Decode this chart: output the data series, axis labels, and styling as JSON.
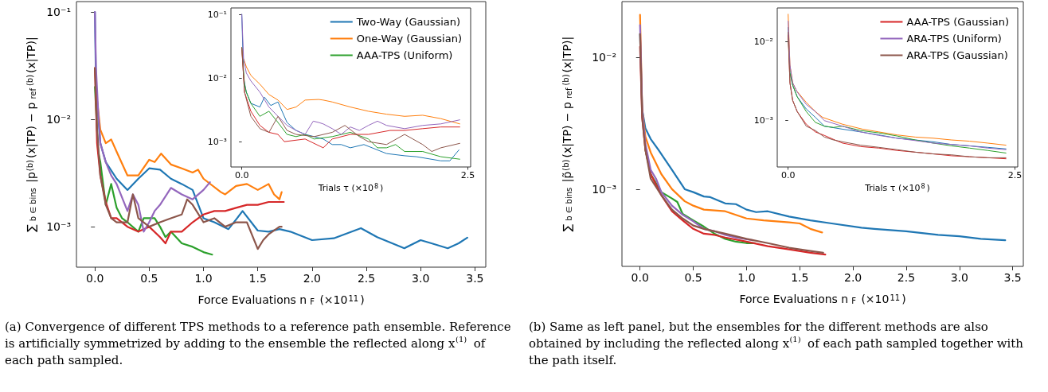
{
  "chart_data": [
    {
      "type": "line",
      "xlabel": "Force Evaluations n$_{F}$ (×10$^{11}$)",
      "ylabel": "∑$_{b ∈ bins}$ |p$^{(b)}$(x|TP) − p$_{ref}$$^{(b)}$(x|TP)|",
      "log": "y",
      "xlim": [
        -0.17,
        3.6
      ],
      "ylim": [
        0.00042,
        0.125
      ],
      "xticks": [
        {
          "value": 0,
          "label": "0.0"
        },
        0.5,
        {
          "value": 1,
          "label": "1.0"
        },
        1.5,
        {
          "value": 2,
          "label": "2.0"
        },
        2.5,
        {
          "value": 3,
          "label": "3.0"
        },
        3.5
      ],
      "yticks": [
        {
          "value": 0.1,
          "label": "10⁻¹"
        },
        {
          "value": 0.01,
          "label": "10⁻²"
        },
        {
          "value": 0.001,
          "label": "10⁻³"
        }
      ],
      "annotations": [
        "(a) Convergence of different TPS methods to a reference path ensemble. Reference is artificially symmetrized by adding to the ensemble the reflected along x$^{(1)}$ of each path sampled."
      ],
      "series": [
        {
          "color": "#1f77b4",
          "x": [
            0,
            0.01,
            0.05,
            0.1,
            0.2,
            0.3,
            0.4,
            0.5,
            0.6,
            0.7,
            0.8,
            0.9,
            1.0,
            1.1,
            1.23,
            1.31,
            1.36,
            1.5,
            1.6,
            1.7,
            1.8,
            2.0,
            2.2,
            2.45,
            2.6,
            2.85,
            3.0,
            3.1,
            3.25,
            3.35,
            3.43
          ],
          "values": [
            0.1,
            0.02,
            0.006,
            0.004,
            0.0028,
            0.0022,
            0.0028,
            0.0035,
            0.0034,
            0.0028,
            0.0025,
            0.0022,
            0.0012,
            0.0011,
            0.00095,
            0.0012,
            0.0014,
            0.00092,
            0.0009,
            0.00095,
            0.0009,
            0.00075,
            0.00078,
            0.00097,
            0.0008,
            0.00063,
            0.00075,
            0.0007,
            0.00063,
            0.0007,
            0.00079
          ]
        },
        {
          "color": "#ff7f0e",
          "x": [
            0,
            0.02,
            0.05,
            0.1,
            0.15,
            0.2,
            0.3,
            0.4,
            0.5,
            0.55,
            0.61,
            0.7,
            0.8,
            0.9,
            0.95,
            1.0,
            1.16,
            1.2,
            1.3,
            1.4,
            1.5,
            1.6,
            1.65,
            1.7,
            1.72
          ],
          "values": [
            0.03,
            0.015,
            0.008,
            0.006,
            0.0065,
            0.005,
            0.003,
            0.003,
            0.0042,
            0.004,
            0.0048,
            0.0038,
            0.0035,
            0.0032,
            0.0034,
            0.0028,
            0.0021,
            0.002,
            0.0024,
            0.0025,
            0.0022,
            0.0025,
            0.002,
            0.0018,
            0.0021
          ]
        },
        {
          "color": "#2ca02c",
          "x": [
            0,
            0.03,
            0.05,
            0.1,
            0.15,
            0.2,
            0.25,
            0.3,
            0.4,
            0.45,
            0.55,
            0.6,
            0.65,
            0.7,
            0.8,
            0.9,
            1.0,
            1.08
          ],
          "values": [
            0.02,
            0.005,
            0.004,
            0.0016,
            0.0025,
            0.0015,
            0.0012,
            0.0011,
            0.0009,
            0.0012,
            0.0012,
            0.001,
            0.0008,
            0.0009,
            0.0007,
            0.00065,
            0.00058,
            0.00055
          ]
        },
        {
          "color": "#d62728",
          "x": [
            0,
            0.02,
            0.05,
            0.1,
            0.15,
            0.2,
            0.3,
            0.4,
            0.5,
            0.6,
            0.65,
            0.7,
            0.8,
            0.9,
            1.0,
            1.1,
            1.2,
            1.3,
            1.4,
            1.5,
            1.6,
            1.74
          ],
          "values": [
            0.03,
            0.006,
            0.003,
            0.0017,
            0.0012,
            0.0012,
            0.001,
            0.0009,
            0.001,
            0.0008,
            0.0007,
            0.0009,
            0.0009,
            0.0011,
            0.0013,
            0.0014,
            0.0014,
            0.0015,
            0.0016,
            0.0016,
            0.0017,
            0.0017
          ]
        },
        {
          "color": "#9467bd",
          "x": [
            0,
            0.01,
            0.03,
            0.05,
            0.1,
            0.15,
            0.2,
            0.3,
            0.35,
            0.4,
            0.45,
            0.5,
            0.55,
            0.6,
            0.7,
            0.8,
            0.9,
            1.0,
            1.06
          ],
          "values": [
            0.1,
            0.03,
            0.012,
            0.006,
            0.004,
            0.003,
            0.0025,
            0.0014,
            0.002,
            0.0016,
            0.0009,
            0.0011,
            0.0014,
            0.0016,
            0.0023,
            0.002,
            0.0018,
            0.0022,
            0.0026
          ]
        },
        {
          "color": "#8c564b",
          "x": [
            0,
            0.02,
            0.05,
            0.1,
            0.15,
            0.2,
            0.3,
            0.35,
            0.4,
            0.5,
            0.6,
            0.7,
            0.8,
            0.85,
            0.9,
            1.0,
            1.1,
            1.2,
            1.3,
            1.4,
            1.5,
            1.55,
            1.6,
            1.7,
            1.72
          ],
          "values": [
            0.03,
            0.008,
            0.003,
            0.0016,
            0.0012,
            0.0011,
            0.0011,
            0.002,
            0.0012,
            0.001,
            0.0011,
            0.0012,
            0.0013,
            0.0018,
            0.0016,
            0.0011,
            0.0012,
            0.001,
            0.0011,
            0.0011,
            0.00062,
            0.00075,
            0.00085,
            0.001,
            0.001
          ]
        }
      ]
    },
    {
      "type": "line",
      "xlabel": "Trials τ (×10$^{8}$)",
      "log": "y",
      "legend": "top right",
      "xlim": [
        -0.12,
        2.53
      ],
      "ylim": [
        0.0004,
        0.126
      ],
      "xticks": [
        {
          "value": 0,
          "label": "0.0"
        },
        2.5
      ],
      "yticks": [
        {
          "value": 0.1,
          "label": "10⁻¹"
        },
        {
          "value": 0.01,
          "label": "10⁻²"
        },
        {
          "value": 0.001,
          "label": "10⁻³"
        }
      ],
      "series": [
        {
          "name": "Two-Way (Gaussian)",
          "color": "#1f77b4",
          "x": [
            0,
            0.02,
            0.05,
            0.1,
            0.2,
            0.25,
            0.32,
            0.4,
            0.5,
            0.6,
            0.7,
            0.8,
            0.9,
            1.0,
            1.1,
            1.2,
            1.35,
            1.6,
            1.8,
            1.93,
            2.2,
            2.3,
            2.4
          ],
          "values": [
            0.1,
            0.01,
            0.006,
            0.004,
            0.0035,
            0.005,
            0.0037,
            0.0042,
            0.002,
            0.0015,
            0.0013,
            0.0012,
            0.0011,
            0.0009,
            0.0009,
            0.0008,
            0.0009,
            0.00065,
            0.0006,
            0.00058,
            0.0005,
            0.0005,
            0.00074
          ]
        },
        {
          "name": "One-Way (Gaussian)",
          "color": "#ff7f0e",
          "x": [
            0.02,
            0.05,
            0.1,
            0.2,
            0.3,
            0.4,
            0.5,
            0.6,
            0.7,
            0.85,
            0.9,
            1.0,
            1.2,
            1.4,
            1.6,
            1.8,
            2.0,
            2.2,
            2.41
          ],
          "values": [
            0.02,
            0.015,
            0.011,
            0.008,
            0.0055,
            0.0045,
            0.0032,
            0.0035,
            0.0045,
            0.0046,
            0.0045,
            0.0042,
            0.0035,
            0.003,
            0.0027,
            0.0025,
            0.0026,
            0.0023,
            0.0019
          ]
        },
        {
          "name": "AAA-TPS (Uniform)",
          "color": "#2ca02c",
          "x": [
            0,
            0.03,
            0.05,
            0.1,
            0.2,
            0.3,
            0.4,
            0.5,
            0.6,
            0.7,
            0.8,
            1.0,
            1.2,
            1.4,
            1.5,
            1.6,
            1.7,
            1.8,
            2.0,
            2.2,
            2.41
          ],
          "values": [
            0.03,
            0.008,
            0.006,
            0.004,
            0.0025,
            0.003,
            0.002,
            0.0013,
            0.0012,
            0.0013,
            0.0011,
            0.0012,
            0.0014,
            0.0011,
            0.0008,
            0.0008,
            0.0009,
            0.0007,
            0.0007,
            0.00058,
            0.00053
          ]
        },
        {
          "color": "#d62728",
          "x": [
            0,
            0.03,
            0.1,
            0.2,
            0.3,
            0.4,
            0.47,
            0.7,
            0.9,
            1.0,
            1.2,
            1.4,
            1.64,
            1.8,
            2.0,
            2.2,
            2.41
          ],
          "values": [
            0.03,
            0.006,
            0.003,
            0.0018,
            0.0014,
            0.0013,
            0.001,
            0.0011,
            0.0008,
            0.0011,
            0.0013,
            0.0013,
            0.0015,
            0.0015,
            0.0016,
            0.0017,
            0.0017
          ]
        },
        {
          "color": "#9467bd",
          "x": [
            0,
            0.02,
            0.05,
            0.1,
            0.2,
            0.3,
            0.4,
            0.5,
            0.6,
            0.7,
            0.79,
            0.85,
            0.9,
            1.0,
            1.1,
            1.2,
            1.3,
            1.4,
            1.5,
            1.6,
            1.8,
            2.0,
            2.2,
            2.41
          ],
          "values": [
            0.1,
            0.02,
            0.012,
            0.009,
            0.006,
            0.0035,
            0.0025,
            0.0018,
            0.0015,
            0.0013,
            0.0021,
            0.002,
            0.0019,
            0.0016,
            0.0013,
            0.0017,
            0.0015,
            0.0018,
            0.0021,
            0.0018,
            0.0016,
            0.0018,
            0.0019,
            0.0022
          ]
        },
        {
          "color": "#8c564b",
          "x": [
            0,
            0.03,
            0.1,
            0.2,
            0.3,
            0.4,
            0.5,
            0.6,
            0.8,
            1.0,
            1.14,
            1.3,
            1.4,
            1.6,
            1.8,
            2.0,
            2.1,
            2.2,
            2.41
          ],
          "values": [
            0.03,
            0.006,
            0.0025,
            0.0016,
            0.0014,
            0.0025,
            0.0015,
            0.0013,
            0.0012,
            0.0014,
            0.0018,
            0.0012,
            0.001,
            0.0009,
            0.0013,
            0.0009,
            0.0007,
            0.0008,
            0.00094
          ]
        }
      ]
    },
    {
      "type": "line",
      "xlabel": "Force Evaluations n$_{F}$ (×10$^{11}$)",
      "ylabel": "∑$_{b ∈ bins}$ |p̃$^{(b)}$(x|TP) − p$_{ref}$$^{(b)}$(x|TP)|",
      "log": "y",
      "xlim": [
        -0.17,
        3.6
      ],
      "ylim": [
        0.00026,
        0.0264
      ],
      "xticks": [
        {
          "value": 0,
          "label": "0.0"
        },
        0.5,
        {
          "value": 1,
          "label": "1.0"
        },
        1.5,
        {
          "value": 2,
          "label": "2.0"
        },
        2.5,
        {
          "value": 3,
          "label": "3.0"
        },
        3.5
      ],
      "yticks": [
        {
          "value": 0.01,
          "label": "10⁻²"
        },
        {
          "value": 0.001,
          "label": "10⁻³"
        }
      ],
      "annotations": [
        "(b) Same as left panel, but the ensembles for the different methods are also obtained by including the reflected along x$^{(1)}$ of each path sampled together with the path itself."
      ],
      "series": [
        {
          "color": "#1f77b4",
          "x": [
            0,
            0.02,
            0.05,
            0.1,
            0.17,
            0.3,
            0.42,
            0.5,
            0.6,
            0.66,
            0.8,
            0.9,
            1.0,
            1.09,
            1.2,
            1.4,
            1.6,
            1.8,
            2.08,
            2.2,
            2.5,
            2.8,
            3.0,
            3.2,
            3.43
          ],
          "values": [
            0.015,
            0.004,
            0.0029,
            0.0024,
            0.002,
            0.0014,
            0.001,
            0.00095,
            0.00088,
            0.00087,
            0.00078,
            0.00077,
            0.0007,
            0.00067,
            0.00068,
            0.00062,
            0.00058,
            0.00055,
            0.00051,
            0.0005,
            0.00048,
            0.00045,
            0.00044,
            0.00042,
            0.00041
          ]
        },
        {
          "color": "#ff7f0e",
          "x": [
            0,
            0.02,
            0.05,
            0.1,
            0.2,
            0.3,
            0.42,
            0.5,
            0.6,
            0.8,
            1.0,
            1.16,
            1.4,
            1.5,
            1.6,
            1.71
          ],
          "values": [
            0.021,
            0.004,
            0.0025,
            0.0019,
            0.0013,
            0.001,
            0.00081,
            0.00075,
            0.0007,
            0.00068,
            0.0006,
            0.00058,
            0.00056,
            0.00055,
            0.0005,
            0.00047
          ]
        },
        {
          "color": "#2ca02c",
          "x": [
            0.05,
            0.1,
            0.2,
            0.3,
            0.35,
            0.4,
            0.5,
            0.6,
            0.7,
            0.8,
            0.9,
            1.0,
            1.08
          ],
          "values": [
            0.002,
            0.0013,
            0.00095,
            0.00085,
            0.0008,
            0.00065,
            0.00058,
            0.00052,
            0.00046,
            0.00042,
            0.0004,
            0.00039,
            0.00039
          ]
        },
        {
          "color": "#d62728",
          "x": [
            0,
            0.02,
            0.05,
            0.1,
            0.2,
            0.3,
            0.4,
            0.5,
            0.6,
            0.7,
            0.8,
            1.0,
            1.2,
            1.4,
            1.6,
            1.74
          ],
          "values": [
            0.012,
            0.0035,
            0.002,
            0.0013,
            0.0009,
            0.00068,
            0.00058,
            0.0005,
            0.00046,
            0.00045,
            0.00043,
            0.0004,
            0.00037,
            0.00035,
            0.00033,
            0.00032
          ]
        },
        {
          "color": "#9467bd",
          "x": [
            0,
            0.02,
            0.05,
            0.1,
            0.15,
            0.2,
            0.3,
            0.4,
            0.5,
            0.6,
            0.7,
            0.8,
            0.9,
            1.06
          ],
          "values": [
            0.0175,
            0.004,
            0.0022,
            0.0014,
            0.0012,
            0.00095,
            0.00075,
            0.00064,
            0.00057,
            0.0005,
            0.00048,
            0.00045,
            0.00043,
            0.00041
          ]
        },
        {
          "color": "#8c564b",
          "x": [
            0,
            0.02,
            0.05,
            0.1,
            0.2,
            0.3,
            0.4,
            0.5,
            0.6,
            0.7,
            0.8,
            1.0,
            1.2,
            1.4,
            1.6,
            1.72
          ],
          "values": [
            0.015,
            0.0035,
            0.002,
            0.0012,
            0.0009,
            0.0007,
            0.0006,
            0.00053,
            0.0005,
            0.00048,
            0.00046,
            0.00042,
            0.00039,
            0.00036,
            0.00034,
            0.00033
          ]
        }
      ]
    },
    {
      "type": "line",
      "xlabel": "Trials τ (×10$^{8}$)",
      "log": "y",
      "legend": "top right",
      "xlim": [
        -0.12,
        2.53
      ],
      "ylim": [
        0.00026,
        0.0264
      ],
      "xticks": [
        {
          "value": 0,
          "label": "0.0"
        },
        2.5
      ],
      "yticks": [
        {
          "value": 0.01,
          "label": "10⁻²"
        },
        {
          "value": 0.001,
          "label": "10⁻³"
        }
      ],
      "series": [
        {
          "color": "#1f77b4",
          "x": [
            0,
            0.02,
            0.05,
            0.1,
            0.2,
            0.3,
            0.4,
            0.6,
            0.8,
            1.0,
            1.2,
            1.4,
            1.6,
            1.8,
            2.0,
            2.2,
            2.4
          ],
          "values": [
            0.015,
            0.004,
            0.0028,
            0.002,
            0.0014,
            0.0011,
            0.00085,
            0.00078,
            0.00072,
            0.00066,
            0.0006,
            0.00057,
            0.00054,
            0.0005,
            0.00048,
            0.00046,
            0.00044
          ]
        },
        {
          "color": "#ff7f0e",
          "x": [
            0,
            0.02,
            0.05,
            0.09,
            0.2,
            0.3,
            0.38,
            0.6,
            0.82,
            1.0,
            1.2,
            1.4,
            1.6,
            1.8,
            2.0,
            2.2,
            2.4
          ],
          "values": [
            0.022,
            0.005,
            0.003,
            0.0024,
            0.0017,
            0.0013,
            0.0011,
            0.0009,
            0.00078,
            0.00072,
            0.00066,
            0.00062,
            0.0006,
            0.00057,
            0.00055,
            0.00052,
            0.00049
          ]
        },
        {
          "color": "#2ca02c",
          "x": [
            0,
            0.02,
            0.05,
            0.1,
            0.2,
            0.3,
            0.4,
            0.5,
            0.6,
            0.8,
            1.0,
            1.2,
            1.4,
            1.6,
            1.8,
            2.0,
            2.2,
            2.4
          ],
          "values": [
            0.012,
            0.004,
            0.0028,
            0.002,
            0.0013,
            0.00095,
            0.00085,
            0.00082,
            0.00085,
            0.00075,
            0.0007,
            0.00064,
            0.00057,
            0.00052,
            0.00048,
            0.00045,
            0.00042,
            0.00039
          ]
        },
        {
          "name": "AAA-TPS (Gaussian)",
          "color": "#d62728",
          "x": [
            0,
            0.02,
            0.05,
            0.1,
            0.2,
            0.3,
            0.4,
            0.53,
            0.6,
            0.8,
            1.0,
            1.2,
            1.4,
            1.6,
            1.8,
            2.0,
            2.2,
            2.4
          ],
          "values": [
            0.012,
            0.003,
            0.0018,
            0.0013,
            0.0009,
            0.00072,
            0.00065,
            0.00056,
            0.00052,
            0.00047,
            0.00045,
            0.00042,
            0.0004,
            0.00038,
            0.00036,
            0.00035,
            0.00034,
            0.00033
          ]
        },
        {
          "name": "ARA-TPS (Uniform)",
          "color": "#9467bd",
          "x": [
            0,
            0.02,
            0.05,
            0.1,
            0.2,
            0.3,
            0.4,
            0.6,
            0.8,
            1.0,
            1.2,
            1.4,
            1.6,
            1.8,
            2.0,
            2.2,
            2.4
          ],
          "values": [
            0.018,
            0.005,
            0.003,
            0.0023,
            0.0016,
            0.0013,
            0.001,
            0.00085,
            0.00072,
            0.00065,
            0.0006,
            0.00056,
            0.00052,
            0.0005,
            0.00048,
            0.00045,
            0.00043
          ]
        },
        {
          "name": "ARA-TPS (Gaussian)",
          "color": "#8c564b",
          "x": [
            0,
            0.02,
            0.05,
            0.1,
            0.2,
            0.3,
            0.4,
            0.5,
            0.6,
            0.8,
            1.0,
            1.2,
            1.4,
            1.6,
            1.8,
            2.0,
            2.2,
            2.4
          ],
          "values": [
            0.013,
            0.003,
            0.0018,
            0.0013,
            0.00085,
            0.00075,
            0.00062,
            0.00057,
            0.00054,
            0.00049,
            0.00046,
            0.00043,
            0.0004,
            0.00038,
            0.00037,
            0.00035,
            0.00034,
            0.00034
          ]
        }
      ]
    }
  ]
}
